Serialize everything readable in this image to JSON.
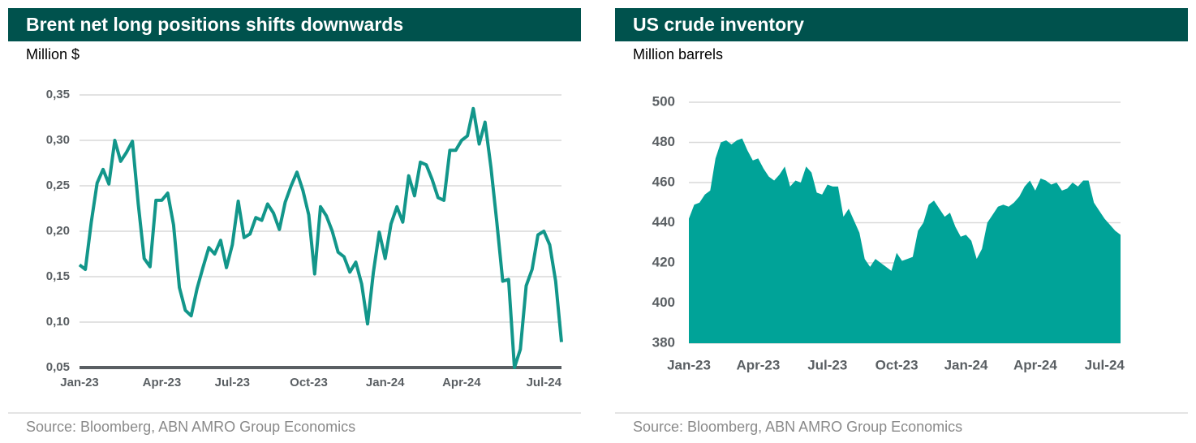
{
  "chart_data": [
    {
      "type": "line",
      "title": "Brent net long positions shifts downwards",
      "ylabel": "Million $",
      "source": "Source: Bloomberg, ABN AMRO Group Economics",
      "color": "#12968a",
      "grid": true,
      "categories": [
        "Jan-23",
        null,
        null,
        null,
        null,
        null,
        null,
        null,
        null,
        null,
        null,
        null,
        null,
        null,
        "Apr-23",
        null,
        null,
        null,
        null,
        null,
        null,
        null,
        null,
        null,
        null,
        null,
        "Jul-23",
        null,
        null,
        null,
        null,
        null,
        null,
        null,
        null,
        null,
        null,
        null,
        null,
        "Oct-23",
        null,
        null,
        null,
        null,
        null,
        null,
        null,
        null,
        null,
        null,
        null,
        null,
        "Jan-24",
        null,
        null,
        null,
        null,
        null,
        null,
        null,
        null,
        null,
        null,
        null,
        null,
        "Apr-24",
        null,
        null,
        null,
        null,
        null,
        null,
        null,
        null,
        null,
        null,
        null,
        null,
        null,
        "Jul-24",
        null,
        null,
        null
      ],
      "values": [
        0.163,
        0.158,
        0.21,
        0.253,
        0.268,
        0.252,
        0.3,
        0.277,
        0.287,
        0.299,
        0.23,
        0.17,
        0.161,
        0.234,
        0.234,
        0.242,
        0.207,
        0.138,
        0.113,
        0.107,
        0.137,
        0.16,
        0.182,
        0.175,
        0.19,
        0.16,
        0.185,
        0.233,
        0.193,
        0.197,
        0.215,
        0.212,
        0.23,
        0.22,
        0.202,
        0.232,
        0.25,
        0.265,
        0.245,
        0.218,
        0.153,
        0.227,
        0.217,
        0.2,
        0.177,
        0.172,
        0.155,
        0.166,
        0.142,
        0.098,
        0.155,
        0.199,
        0.17,
        0.208,
        0.227,
        0.21,
        0.261,
        0.239,
        0.276,
        0.273,
        0.257,
        0.237,
        0.234,
        0.289,
        0.289,
        0.3,
        0.305,
        0.335,
        0.296,
        0.32,
        0.27,
        0.21,
        0.145,
        0.147,
        0.05,
        0.07,
        0.14,
        0.158,
        0.196,
        0.2,
        0.185,
        0.145,
        0.078
      ],
      "ylim": [
        0.05,
        0.35
      ],
      "yticks": [
        {
          "value": 0.05,
          "label": "0,05"
        },
        {
          "value": 0.1,
          "label": "0,10"
        },
        {
          "value": 0.15,
          "label": "0,15"
        },
        {
          "value": 0.2,
          "label": "0,20"
        },
        {
          "value": 0.25,
          "label": "0,25"
        },
        {
          "value": 0.3,
          "label": "0,30"
        },
        {
          "value": 0.35,
          "label": "0,35"
        }
      ]
    },
    {
      "type": "area",
      "title": "US crude inventory",
      "ylabel": "Million barrels",
      "source": "Source:  Bloomberg, ABN AMRO Group Economics",
      "color": "#00a398",
      "grid": true,
      "categories": [
        "Jan-23",
        null,
        null,
        null,
        null,
        null,
        null,
        null,
        null,
        null,
        null,
        null,
        null,
        "Apr-23",
        null,
        null,
        null,
        null,
        null,
        null,
        null,
        null,
        null,
        null,
        null,
        null,
        "Jul-23",
        null,
        null,
        null,
        null,
        null,
        null,
        null,
        null,
        null,
        null,
        null,
        null,
        "Oct-23",
        null,
        null,
        null,
        null,
        null,
        null,
        null,
        null,
        null,
        null,
        null,
        null,
        "Jan-24",
        null,
        null,
        null,
        null,
        null,
        null,
        null,
        null,
        null,
        null,
        null,
        null,
        "Apr-24",
        null,
        null,
        null,
        null,
        null,
        null,
        null,
        null,
        null,
        null,
        null,
        null,
        "Jul-24",
        null,
        null,
        null
      ],
      "values": [
        442,
        449,
        450,
        454,
        456,
        472,
        480,
        481,
        479,
        481,
        482,
        476,
        471,
        472,
        467,
        463,
        461,
        464,
        468,
        458,
        461,
        460,
        468,
        465,
        455,
        454,
        459,
        458,
        458,
        443,
        447,
        441,
        435,
        422,
        418,
        422,
        420,
        418,
        416,
        425,
        421,
        422,
        423,
        436,
        440,
        449,
        451,
        447,
        443,
        445,
        438,
        433,
        434,
        431,
        422,
        427,
        440,
        444,
        448,
        449,
        448,
        450,
        453,
        458,
        461,
        456,
        462,
        461,
        459,
        460,
        456,
        457,
        460,
        458,
        461,
        461,
        450,
        446,
        442,
        439,
        436,
        434
      ],
      "ylim": [
        380,
        500
      ],
      "yticks": [
        380,
        400,
        420,
        440,
        460,
        480,
        500
      ]
    }
  ]
}
